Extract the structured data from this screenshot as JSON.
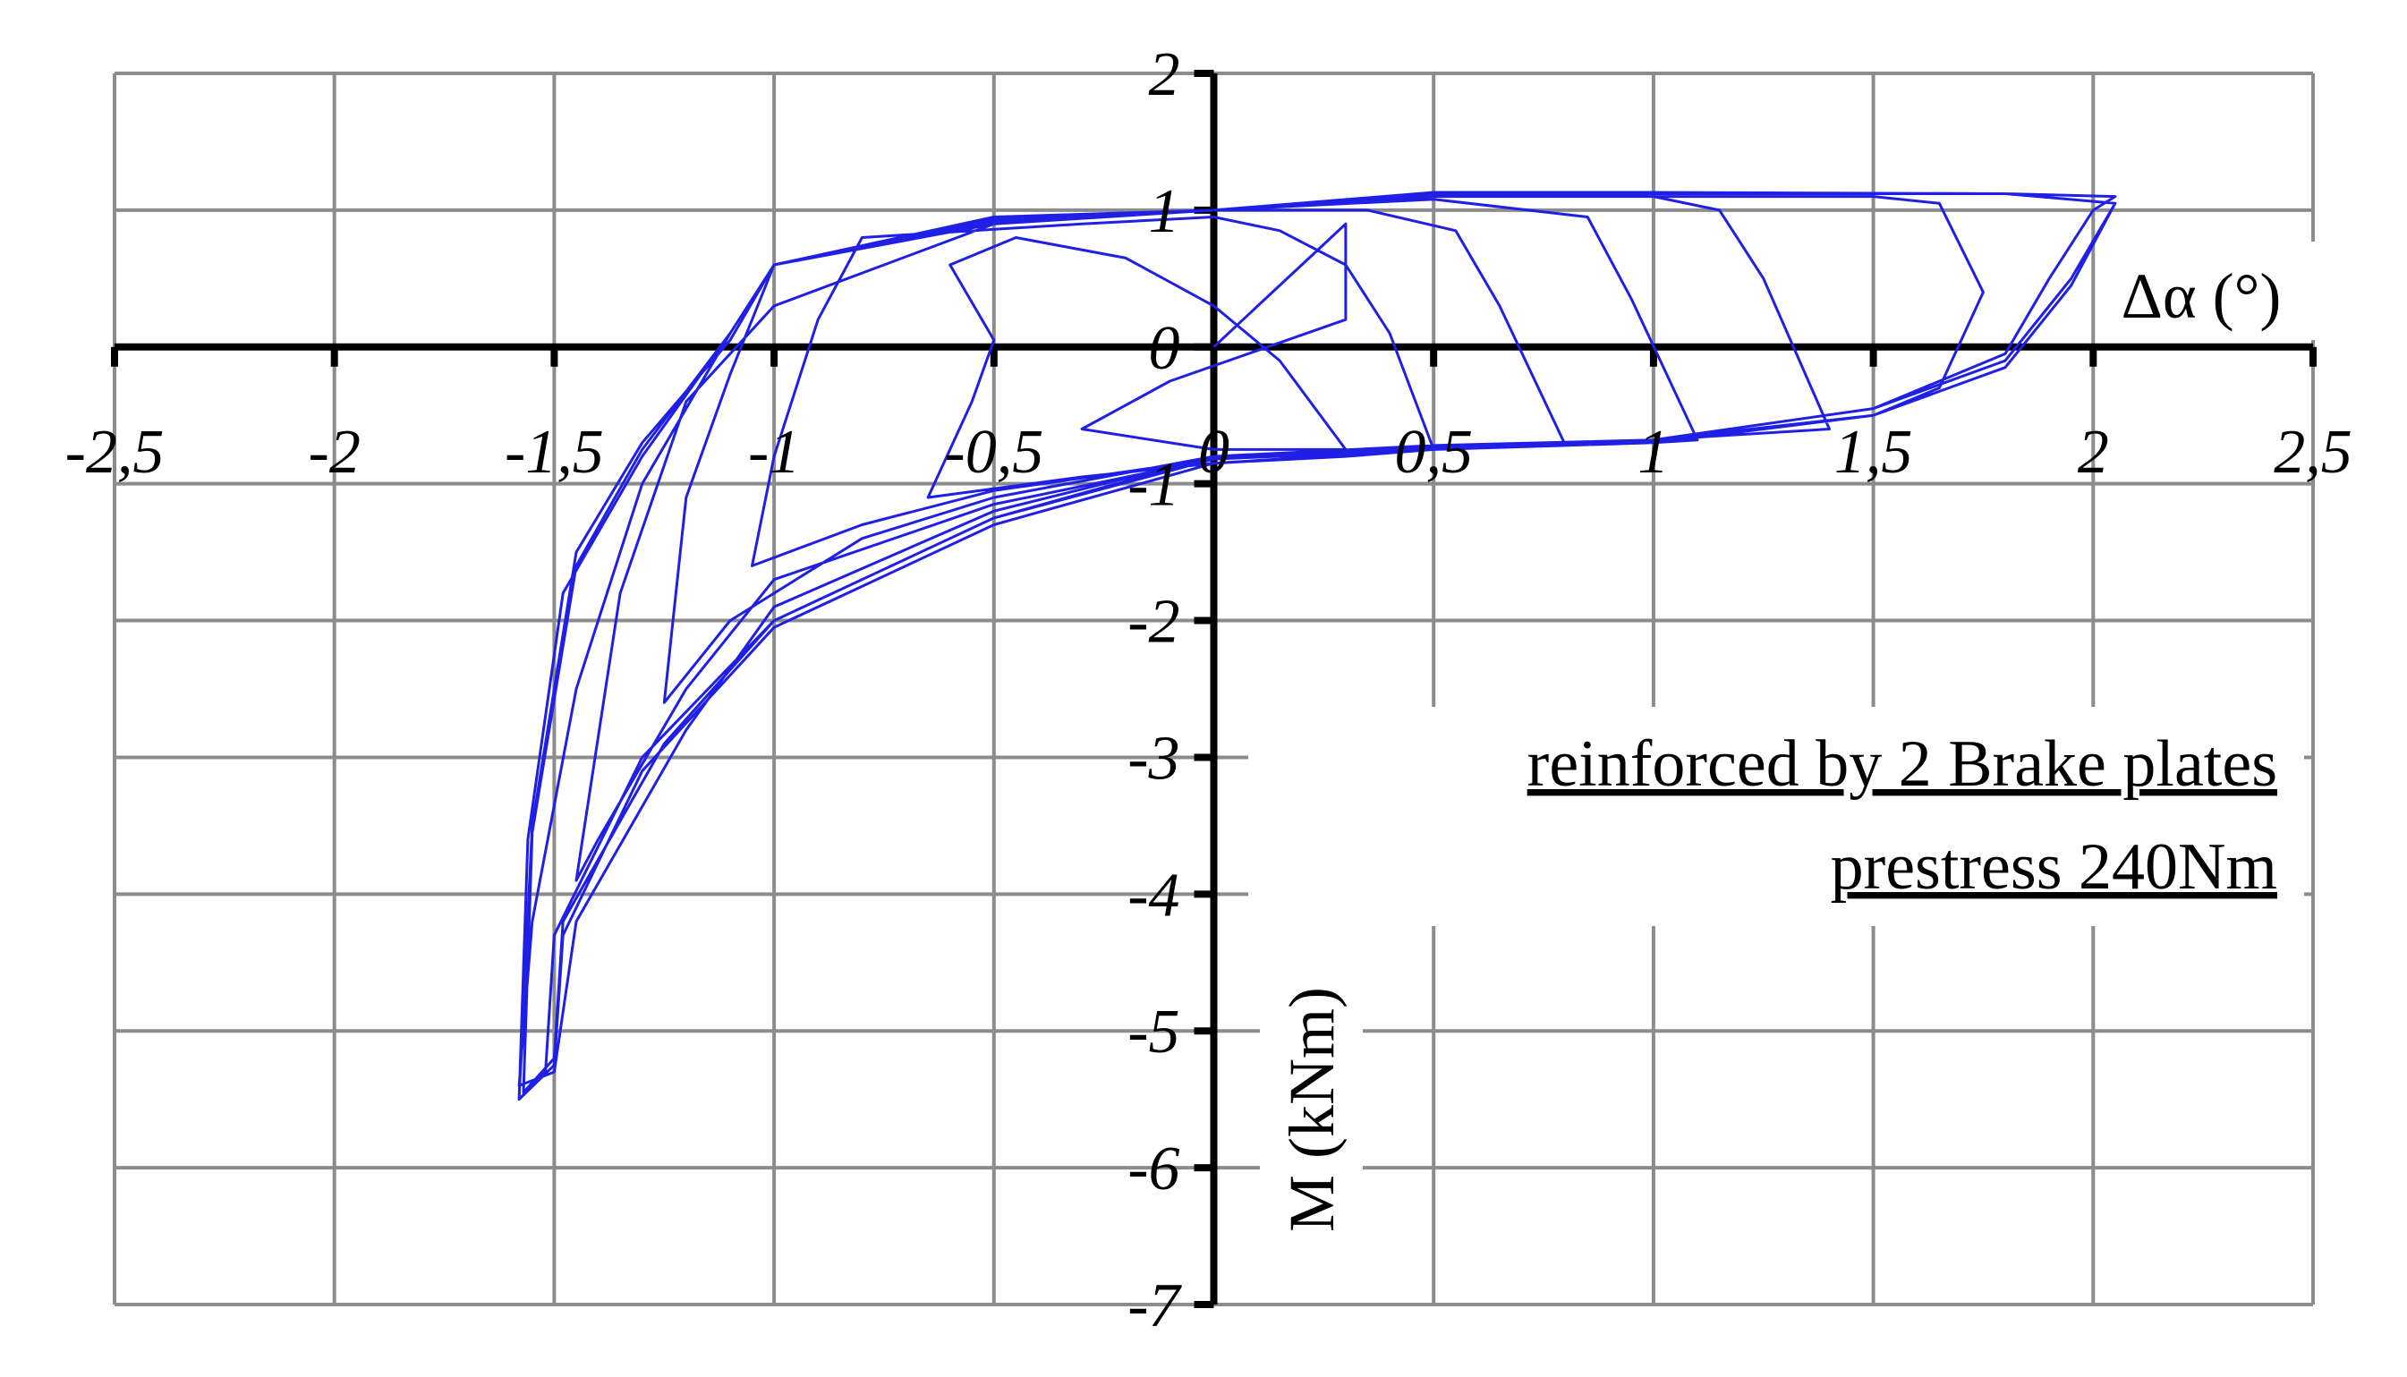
{
  "chart_data": {
    "type": "line",
    "title": "",
    "xlabel": "Δα (°)",
    "ylabel": "M (kNm)",
    "xlim": [
      -2.5,
      2.5
    ],
    "ylim": [
      -7,
      2
    ],
    "x_ticks": [
      -2.5,
      -2,
      -1.5,
      -1,
      -0.5,
      0,
      0.5,
      1,
      1.5,
      2,
      2.5
    ],
    "y_ticks": [
      -7,
      -6,
      -5,
      -4,
      -3,
      -2,
      -1,
      0,
      1,
      2
    ],
    "x_tick_labels": [
      "-2,5",
      "-2",
      "-1,5",
      "-1",
      "-0,5",
      "0",
      "0,5",
      "1",
      "1,5",
      "2",
      "2,5"
    ],
    "y_tick_labels": [
      "-7",
      "-6",
      "-5",
      "-4",
      "-3",
      "-2",
      "-1",
      "0",
      "1",
      "2"
    ],
    "grid": true,
    "line_color": "#1f1fe6",
    "annotations": [
      "reinforced by 2 Brake plates",
      "prestress 240Nm"
    ],
    "series": [
      {
        "points": [
          [
            0,
            0
          ],
          [
            0.1,
            0.3
          ],
          [
            0.25,
            0.75
          ],
          [
            0.3,
            0.9
          ],
          [
            0.3,
            0.2
          ],
          [
            -0.1,
            -0.25
          ],
          [
            -0.3,
            -0.6
          ],
          [
            0,
            -0.75
          ],
          [
            0.3,
            -0.75
          ],
          [
            0.15,
            -0.1
          ],
          [
            0,
            0.3
          ],
          [
            -0.2,
            0.65
          ],
          [
            -0.45,
            0.8
          ],
          [
            -0.6,
            0.6
          ],
          [
            -0.5,
            0.05
          ],
          [
            -0.55,
            -0.4
          ],
          [
            -0.65,
            -1.1
          ],
          [
            -0.3,
            -0.95
          ],
          [
            0,
            -0.85
          ],
          [
            0.3,
            -0.8
          ],
          [
            0.5,
            -0.75
          ],
          [
            0.4,
            0.1
          ],
          [
            0.3,
            0.6
          ],
          [
            0.15,
            0.85
          ],
          [
            0,
            0.95
          ],
          [
            -0.3,
            0.9
          ],
          [
            -0.8,
            0.8
          ],
          [
            -0.9,
            0.2
          ],
          [
            -1.0,
            -0.8
          ],
          [
            -1.05,
            -1.6
          ],
          [
            -0.8,
            -1.3
          ],
          [
            -0.5,
            -1.05
          ],
          [
            0,
            -0.82
          ],
          [
            0.5,
            -0.75
          ],
          [
            0.8,
            -0.72
          ],
          [
            0.65,
            0.3
          ],
          [
            0.55,
            0.85
          ],
          [
            0.35,
            1.0
          ],
          [
            0,
            1.0
          ],
          [
            -0.5,
            0.9
          ],
          [
            -1.0,
            0.6
          ],
          [
            -1.1,
            -0.2
          ],
          [
            -1.2,
            -1.1
          ],
          [
            -1.25,
            -2.6
          ],
          [
            -1.1,
            -2.0
          ],
          [
            -0.8,
            -1.4
          ],
          [
            -0.5,
            -1.1
          ],
          [
            0,
            -0.8
          ],
          [
            0.5,
            -0.73
          ],
          [
            1.0,
            -0.7
          ],
          [
            1.1,
            -0.68
          ],
          [
            0.95,
            0.35
          ],
          [
            0.85,
            0.95
          ],
          [
            0.5,
            1.08
          ],
          [
            0,
            1.0
          ],
          [
            -0.5,
            0.9
          ],
          [
            -1.0,
            0.3
          ],
          [
            -1.2,
            -0.4
          ],
          [
            -1.35,
            -1.8
          ],
          [
            -1.45,
            -3.9
          ],
          [
            -1.4,
            -3.6
          ],
          [
            -1.2,
            -2.5
          ],
          [
            -1.0,
            -1.7
          ],
          [
            -0.5,
            -1.15
          ],
          [
            0,
            -0.82
          ],
          [
            0.5,
            -0.72
          ],
          [
            1.0,
            -0.68
          ],
          [
            1.4,
            -0.6
          ],
          [
            1.25,
            0.5
          ],
          [
            1.15,
            1.0
          ],
          [
            1.0,
            1.1
          ],
          [
            0.5,
            1.1
          ],
          [
            0,
            1.0
          ],
          [
            -0.5,
            0.92
          ],
          [
            -1.0,
            0.6
          ],
          [
            -1.1,
            0.1
          ],
          [
            -1.3,
            -1.0
          ],
          [
            -1.45,
            -2.5
          ],
          [
            -1.55,
            -4.2
          ],
          [
            -1.58,
            -5.4
          ],
          [
            -1.5,
            -5.3
          ],
          [
            -1.45,
            -4.2
          ],
          [
            -1.2,
            -2.8
          ],
          [
            -1.0,
            -1.9
          ],
          [
            -0.5,
            -1.2
          ],
          [
            0,
            -0.8
          ],
          [
            0.5,
            -0.72
          ],
          [
            1.0,
            -0.68
          ],
          [
            1.5,
            -0.5
          ],
          [
            1.65,
            -0.3
          ],
          [
            1.75,
            0.4
          ],
          [
            1.65,
            1.05
          ],
          [
            1.5,
            1.1
          ],
          [
            1.0,
            1.1
          ],
          [
            0.5,
            1.12
          ],
          [
            0,
            1.0
          ],
          [
            -0.5,
            0.93
          ],
          [
            -1.0,
            0.6
          ],
          [
            -1.1,
            0.05
          ],
          [
            -1.3,
            -0.7
          ],
          [
            -1.45,
            -1.5
          ],
          [
            -1.55,
            -3.5
          ],
          [
            -1.58,
            -5.5
          ],
          [
            -1.52,
            -5.3
          ],
          [
            -1.5,
            -4.3
          ],
          [
            -1.3,
            -3.0
          ],
          [
            -1.0,
            -2.0
          ],
          [
            -0.5,
            -1.25
          ],
          [
            0,
            -0.8
          ],
          [
            0.5,
            -0.72
          ],
          [
            1.0,
            -0.68
          ],
          [
            1.5,
            -0.45
          ],
          [
            1.8,
            -0.05
          ],
          [
            1.9,
            0.5
          ],
          [
            2.0,
            1.0
          ],
          [
            2.05,
            1.1
          ],
          [
            1.8,
            1.12
          ],
          [
            1.5,
            1.12
          ],
          [
            1.0,
            1.12
          ],
          [
            0.5,
            1.12
          ],
          [
            0.1,
            1.02
          ],
          [
            0,
            1.0
          ],
          [
            -0.5,
            0.95
          ],
          [
            -1.0,
            0.6
          ],
          [
            -1.1,
            0.1
          ],
          [
            -1.3,
            -0.75
          ],
          [
            -1.45,
            -1.6
          ],
          [
            -1.55,
            -3.55
          ],
          [
            -1.57,
            -5.45
          ],
          [
            -1.5,
            -5.2
          ],
          [
            -1.48,
            -4.2
          ],
          [
            -1.25,
            -2.9
          ],
          [
            -1.0,
            -2.0
          ],
          [
            -0.5,
            -1.25
          ],
          [
            0,
            -0.82
          ],
          [
            0.5,
            -0.73
          ],
          [
            1.0,
            -0.68
          ],
          [
            1.5,
            -0.45
          ],
          [
            1.8,
            -0.1
          ],
          [
            1.95,
            0.5
          ],
          [
            2.05,
            1.05
          ],
          [
            1.8,
            1.12
          ],
          [
            1.0,
            1.13
          ],
          [
            0.5,
            1.13
          ],
          [
            0,
            1.0
          ],
          [
            -0.5,
            0.95
          ],
          [
            -1.0,
            0.6
          ],
          [
            -1.1,
            0.1
          ],
          [
            -1.3,
            -0.8
          ],
          [
            -1.48,
            -1.8
          ],
          [
            -1.56,
            -3.6
          ],
          [
            -1.58,
            -5.5
          ],
          [
            -1.5,
            -5.25
          ],
          [
            -1.48,
            -4.3
          ],
          [
            -1.3,
            -3.1
          ],
          [
            -1.0,
            -2.05
          ],
          [
            -0.5,
            -1.3
          ],
          [
            0,
            -0.85
          ],
          [
            0.5,
            -0.75
          ],
          [
            1.0,
            -0.7
          ],
          [
            1.5,
            -0.5
          ],
          [
            1.8,
            -0.15
          ],
          [
            1.95,
            0.45
          ],
          [
            2.05,
            1.05
          ]
        ]
      }
    ]
  }
}
